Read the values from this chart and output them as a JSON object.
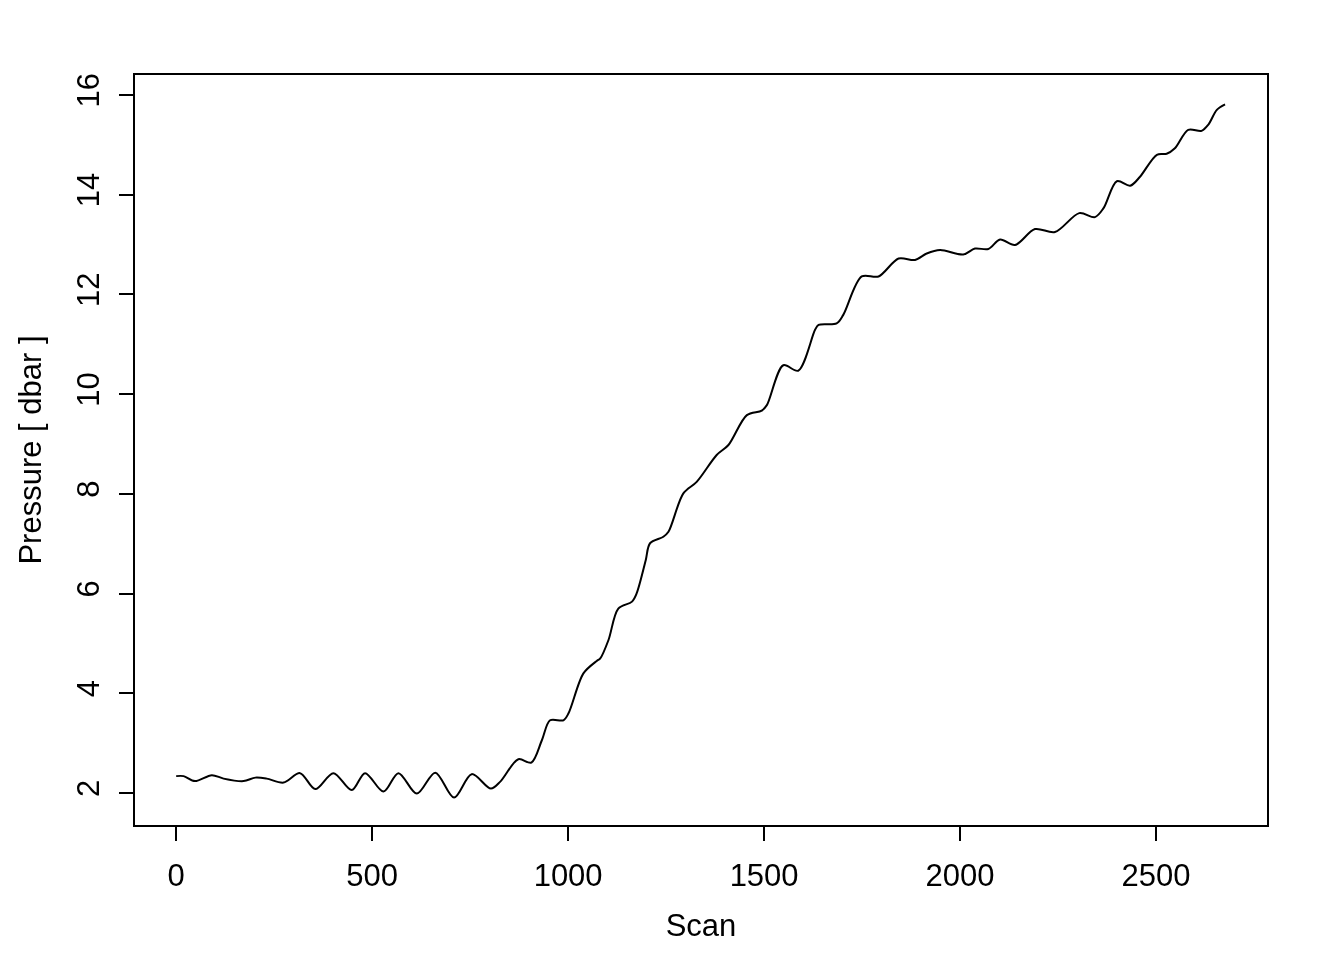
{
  "chart_data": {
    "type": "line",
    "xlabel": "Scan",
    "ylabel": "Pressure [ dbar ]",
    "x": [
      0,
      19,
      48,
      91,
      121,
      172,
      202,
      231,
      274,
      316,
      355,
      401,
      448,
      482,
      529,
      567,
      614,
      661,
      709,
      754,
      803,
      827,
      873,
      906,
      933,
      954,
      988,
      1001,
      1039,
      1073,
      1082,
      1103,
      1128,
      1163,
      1175,
      1198,
      1209,
      1243,
      1256,
      1294,
      1328,
      1379,
      1409,
      1456,
      1494,
      1507,
      1549,
      1587,
      1630,
      1639,
      1685,
      1702,
      1749,
      1792,
      1843,
      1885,
      1915,
      1949,
      2008,
      2038,
      2072,
      2102,
      2140,
      2191,
      2242,
      2304,
      2344,
      2366,
      2400,
      2434,
      2459,
      2502,
      2527,
      2548,
      2582,
      2616,
      2633,
      2655,
      2676
    ],
    "series": [
      {
        "color": "#000000",
        "values": [
          2.34,
          2.34,
          2.24,
          2.36,
          2.29,
          2.24,
          2.31,
          2.29,
          2.21,
          2.4,
          2.08,
          2.4,
          2.06,
          2.4,
          2.03,
          2.4,
          1.99,
          2.41,
          1.91,
          2.38,
          2.09,
          2.23,
          2.68,
          2.61,
          3.06,
          3.46,
          3.46,
          3.6,
          4.4,
          4.65,
          4.7,
          5.07,
          5.7,
          5.84,
          6.01,
          6.67,
          7.01,
          7.14,
          7.24,
          8.01,
          8.24,
          8.78,
          8.98,
          9.58,
          9.67,
          9.78,
          10.58,
          10.47,
          11.29,
          11.39,
          11.42,
          11.59,
          12.36,
          12.36,
          12.72,
          12.69,
          12.82,
          12.89,
          12.8,
          12.92,
          12.91,
          13.1,
          12.99,
          13.31,
          13.25,
          13.63,
          13.55,
          13.73,
          14.27,
          14.18,
          14.36,
          14.8,
          14.82,
          14.93,
          15.3,
          15.28,
          15.4,
          15.7,
          15.81
        ]
      }
    ],
    "xlim": [
      -105,
      2783
    ],
    "ylim": [
      1.36,
      16.4
    ],
    "xticks": [
      0,
      500,
      1000,
      1500,
      2000,
      2500
    ],
    "yticks": [
      2,
      4,
      6,
      8,
      10,
      12,
      14,
      16
    ],
    "grid": false,
    "line_style": "solid"
  }
}
